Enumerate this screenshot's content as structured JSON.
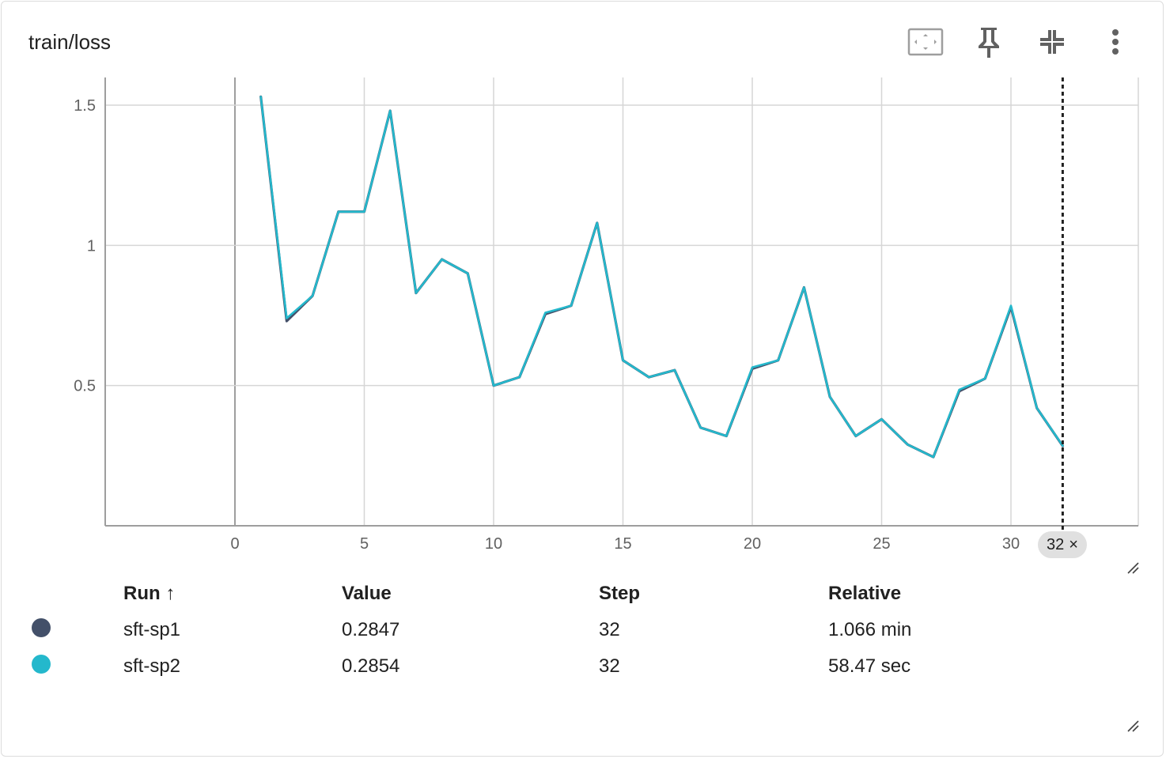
{
  "title": "train/loss",
  "toolbar": {
    "icons": [
      "fit-to-domain-icon",
      "pin-icon",
      "collapse-icon",
      "more-vert-icon"
    ]
  },
  "step_chip": {
    "label": "32",
    "close": "×"
  },
  "table": {
    "headers": {
      "run": "Run ↑",
      "value": "Value",
      "step": "Step",
      "relative": "Relative"
    },
    "rows": [
      {
        "color": "#435069",
        "run": "sft-sp1",
        "value": "0.2847",
        "step": "32",
        "relative": "1.066 min"
      },
      {
        "color": "#24b8cc",
        "run": "sft-sp2",
        "value": "0.2854",
        "step": "32",
        "relative": "58.47 sec"
      }
    ]
  },
  "chart_data": {
    "type": "line",
    "title": "train/loss",
    "xlabel": "",
    "ylabel": "",
    "xlim": [
      -5,
      35
    ],
    "ylim": [
      0,
      1.6
    ],
    "xticks": [
      0,
      5,
      10,
      15,
      20,
      25,
      30
    ],
    "yticks": [
      0.5,
      1,
      1.5
    ],
    "ytick_labels": [
      "0.5",
      "1",
      "1.5"
    ],
    "grid": true,
    "cursor_step": 32,
    "series": [
      {
        "name": "sft-sp1",
        "color": "#435069",
        "x": [
          1,
          2,
          3,
          4,
          5,
          6,
          7,
          8,
          9,
          10,
          11,
          12,
          13,
          14,
          15,
          16,
          17,
          18,
          19,
          20,
          21,
          22,
          23,
          24,
          25,
          26,
          27,
          28,
          29,
          30,
          31,
          32
        ],
        "values": [
          1.53,
          0.73,
          0.82,
          1.12,
          1.12,
          1.48,
          0.83,
          0.95,
          0.9,
          0.5,
          0.53,
          0.755,
          0.785,
          1.08,
          0.59,
          0.53,
          0.555,
          0.35,
          0.32,
          0.56,
          0.59,
          0.85,
          0.46,
          0.32,
          0.38,
          0.29,
          0.245,
          0.48,
          0.525,
          0.78,
          0.42,
          0.2847
        ]
      },
      {
        "name": "sft-sp2",
        "color": "#24b8cc",
        "x": [
          1,
          2,
          3,
          4,
          5,
          6,
          7,
          8,
          9,
          10,
          11,
          12,
          13,
          14,
          15,
          16,
          17,
          18,
          19,
          20,
          21,
          22,
          23,
          24,
          25,
          26,
          27,
          28,
          29,
          30,
          31,
          32
        ],
        "values": [
          1.53,
          0.74,
          0.82,
          1.12,
          1.12,
          1.48,
          0.83,
          0.95,
          0.9,
          0.5,
          0.53,
          0.76,
          0.785,
          1.08,
          0.59,
          0.53,
          0.555,
          0.35,
          0.32,
          0.565,
          0.59,
          0.85,
          0.46,
          0.32,
          0.38,
          0.29,
          0.245,
          0.485,
          0.525,
          0.785,
          0.42,
          0.2854
        ]
      }
    ]
  }
}
